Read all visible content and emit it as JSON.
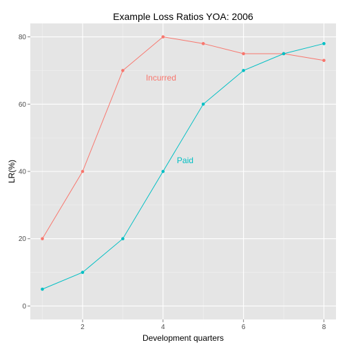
{
  "chart_data": {
    "type": "line",
    "title": "Example Loss Ratios  YOA: 2006",
    "xlabel": "Development quarters",
    "ylabel": "LR(%)",
    "x": [
      1,
      2,
      3,
      4,
      5,
      6,
      7,
      8
    ],
    "xlim": [
      0.7,
      8.3
    ],
    "ylim": [
      -4,
      84
    ],
    "x_ticks": [
      2,
      4,
      6,
      8
    ],
    "y_ticks": [
      0,
      20,
      40,
      60,
      80
    ],
    "grid": true,
    "legend": "none",
    "series": [
      {
        "name": "Incurred",
        "color": "#F8766D",
        "values": [
          20,
          40,
          70,
          80,
          78,
          75,
          75,
          73
        ],
        "label_at": {
          "x": 3.95,
          "y": 67
        }
      },
      {
        "name": "Paid",
        "color": "#00BFC4",
        "values": [
          5,
          10,
          20,
          40,
          60,
          70,
          75,
          78
        ],
        "label_at": {
          "x": 4.55,
          "y": 42.5
        }
      }
    ],
    "panel_color": "#E5E5E5",
    "grid_color": "#FFFFFF"
  }
}
